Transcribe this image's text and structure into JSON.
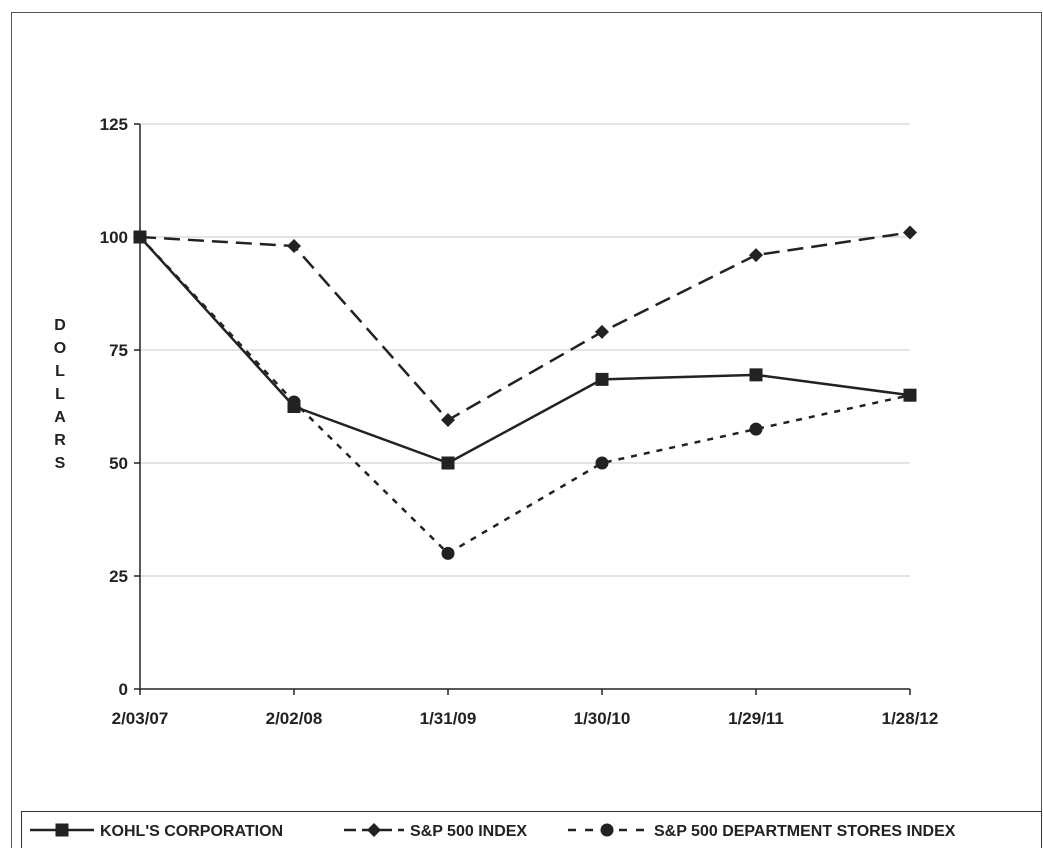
{
  "chart_data": {
    "type": "line",
    "title": "",
    "xlabel": "",
    "ylabel": "DOLLARS",
    "categories": [
      "2/03/07",
      "2/02/08",
      "1/31/09",
      "1/30/10",
      "1/29/11",
      "1/28/12"
    ],
    "ylim": [
      0,
      125
    ],
    "yticks": [
      0,
      25,
      50,
      75,
      100,
      125
    ],
    "grid": true,
    "legend_position": "bottom",
    "series": [
      {
        "name": "KOHL'S CORPORATION",
        "values": [
          100,
          62.5,
          50,
          68.5,
          69.5,
          65
        ],
        "marker": "square",
        "dash": "solid",
        "color": "#222222"
      },
      {
        "name": "S&P 500 INDEX",
        "values": [
          100,
          98,
          59.5,
          79,
          96,
          101
        ],
        "marker": "diamond",
        "dash": "long-dash",
        "color": "#222222"
      },
      {
        "name": "S&P 500 DEPARTMENT STORES INDEX",
        "values": [
          100,
          63.5,
          30,
          50,
          57.5,
          65
        ],
        "marker": "circle",
        "dash": "short-dash",
        "color": "#222222"
      }
    ]
  }
}
